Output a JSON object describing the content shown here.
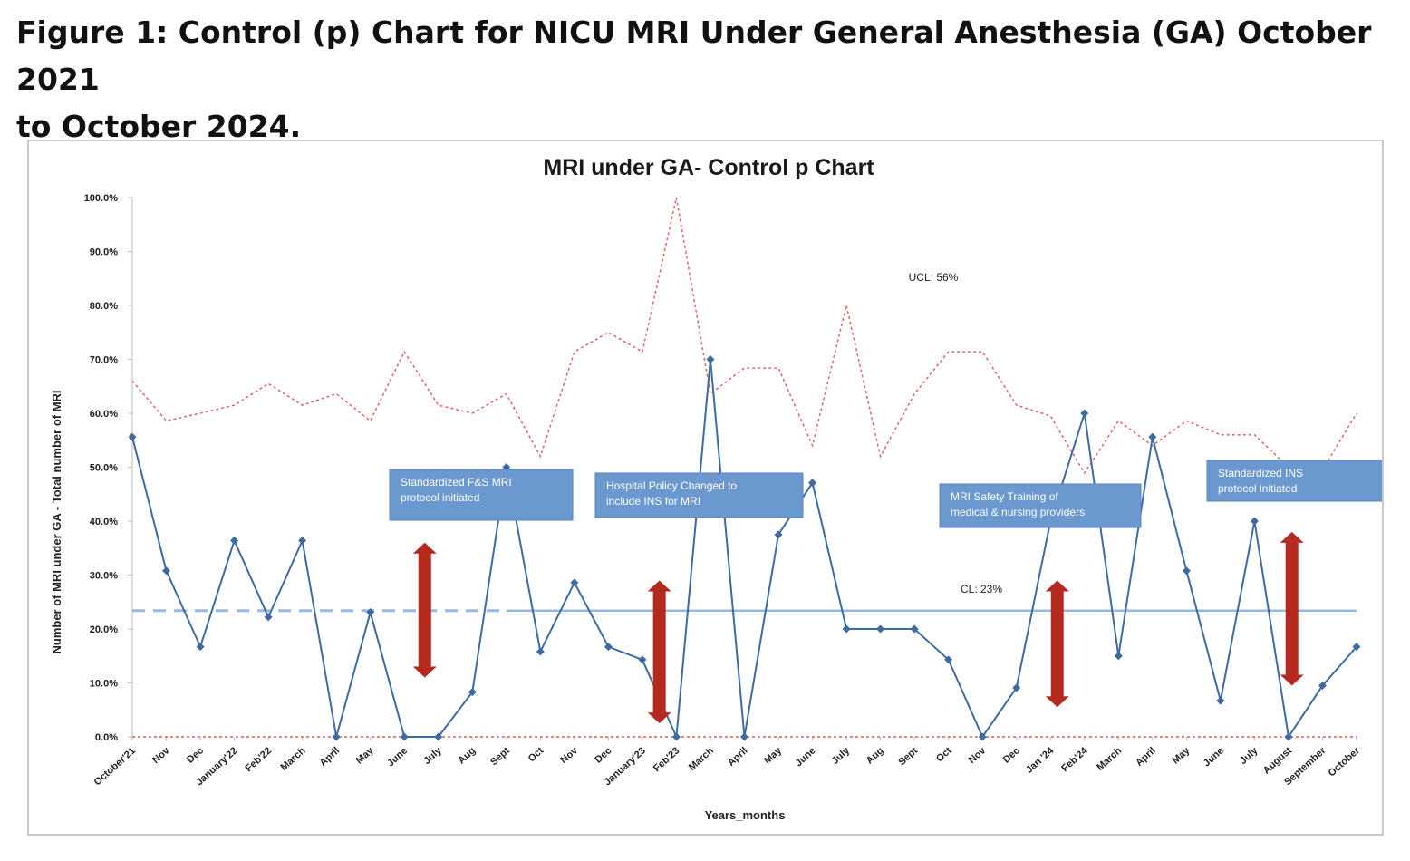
{
  "figure": {
    "caption_line1": "Figure 1: Control (p) Chart for NICU MRI Under General Anesthesia (GA) October 2021",
    "caption_line2": "to October 2024."
  },
  "chart_data": {
    "type": "line",
    "title": "MRI under GA- Control p Chart",
    "xlabel": "Years_months",
    "ylabel": "Number of MRI under GA  -  Total number of MRI",
    "ylim": [
      0,
      100
    ],
    "y_ticks": [
      "0.0%",
      "10.0%",
      "20.0%",
      "30.0%",
      "40.0%",
      "50.0%",
      "60.0%",
      "70.0%",
      "80.0%",
      "90.0%",
      "100.0%"
    ],
    "categories": [
      "October'21",
      "Nov",
      "Dec",
      "January'22",
      "Feb'22",
      "March",
      "April",
      "May",
      "June",
      "July",
      "Aug",
      "Sept",
      "Oct",
      "Nov",
      "Dec",
      "January'23",
      "Feb'23",
      "March",
      "April",
      "May",
      "June",
      "July",
      "Aug",
      "Sept",
      "Oct",
      "Nov",
      "Dec",
      "Jan '24",
      "Feb'24",
      "March",
      "April",
      "May",
      "June",
      "July",
      "August",
      "September",
      "October"
    ],
    "series": [
      {
        "kind": "proportion",
        "color": "#3d6aa0",
        "values": [
          55.6,
          30.8,
          16.7,
          36.4,
          22.2,
          36.4,
          0.0,
          23.1,
          0.0,
          0.0,
          8.3,
          50.0,
          15.8,
          28.6,
          16.7,
          14.3,
          0.0,
          70.0,
          0.0,
          37.5,
          47.1,
          20.0,
          20.0,
          20.0,
          14.3,
          0.0,
          9.1,
          40.0,
          60.0,
          15.0,
          55.6,
          30.8,
          6.7,
          40.0,
          0.0,
          9.5,
          16.7
        ]
      },
      {
        "kind": "UCL",
        "color": "#e05a5a",
        "values": [
          66,
          58.6,
          60,
          61.5,
          65.5,
          61.5,
          63.6,
          58.6,
          71.4,
          61.5,
          60,
          63.6,
          52,
          71.4,
          75,
          71.4,
          100,
          63.6,
          68.4,
          68.4,
          54,
          80,
          52,
          63.6,
          71.4,
          71.4,
          61.5,
          59.5,
          48.9,
          58.6,
          54,
          58.6,
          56,
          56,
          50,
          49.5,
          60
        ]
      },
      {
        "kind": "LCL",
        "color": "#e05a5a",
        "values": [
          0,
          0,
          0,
          0,
          0,
          0,
          0,
          0,
          0,
          0,
          0,
          0,
          0,
          0,
          0,
          0,
          0,
          0,
          0,
          0,
          0,
          0,
          0,
          0,
          0,
          0,
          0,
          0,
          0,
          0,
          0,
          0,
          0,
          0,
          0,
          0,
          0
        ]
      }
    ],
    "center_line": 23.4,
    "center_line_color": "#9ab7de",
    "center_line_dashed_until_index": 11,
    "reference_labels": {
      "ucl": "UCL: 56%",
      "cl": "CL: 23%"
    },
    "annotations": [
      {
        "lines": [
          "Standardized F&S MRI",
          "protocol  initiated"
        ],
        "arrow_at_index": 8.6,
        "arrow_from": 36,
        "arrow_to": 11
      },
      {
        "lines": [
          "Hospital Policy Changed to",
          "include INS for MRI"
        ],
        "arrow_at_index": 15.5,
        "arrow_from": 29,
        "arrow_to": 2.5
      },
      {
        "lines": [
          "MRI Safety Training of",
          "medical & nursing providers"
        ],
        "arrow_at_index": 27.2,
        "arrow_from": 29,
        "arrow_to": 5.5
      },
      {
        "lines": [
          "Standardized  INS",
          "protocol initiated"
        ],
        "arrow_at_index": 34.1,
        "arrow_from": 38,
        "arrow_to": 9.5
      }
    ],
    "annotation_box_color": "#6b99cf",
    "arrow_color": "#b52a1f",
    "grid": false,
    "legend": "none"
  }
}
